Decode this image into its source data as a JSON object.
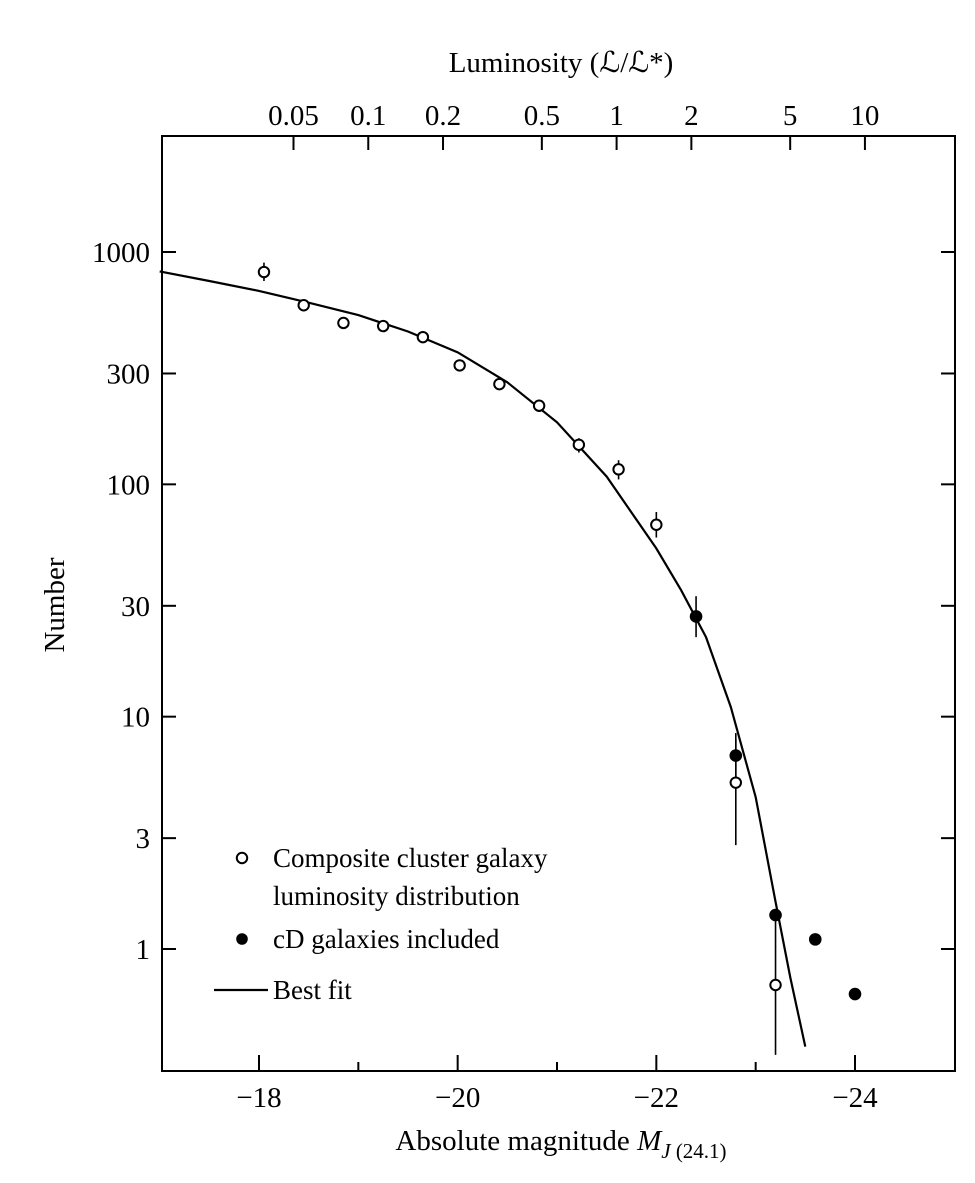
{
  "chart_data": {
    "type": "scatter",
    "top_axis": {
      "title": "Luminosity (ℒ/ℒ*)",
      "ticks": [
        {
          "value": 0.05,
          "label": "0.05"
        },
        {
          "value": 0.1,
          "label": "0.1"
        },
        {
          "value": 0.2,
          "label": "0.2"
        },
        {
          "value": 0.5,
          "label": "0.5"
        },
        {
          "value": 1,
          "label": "1"
        },
        {
          "value": 2,
          "label": "2"
        },
        {
          "value": 5,
          "label": "5"
        },
        {
          "value": 10,
          "label": "10"
        }
      ]
    },
    "x_axis": {
      "title_main": "Absolute magnitude ",
      "title_symbol": "M",
      "title_sub_italic": "J",
      "title_sub": " (24.1)",
      "range": [
        -17,
        -25
      ],
      "ticks": [
        {
          "value": -18,
          "label": "−18"
        },
        {
          "value": -20,
          "label": "−20"
        },
        {
          "value": -22,
          "label": "−22"
        },
        {
          "value": -24,
          "label": "−24"
        }
      ]
    },
    "y_axis": {
      "title": "Number",
      "scale": "log",
      "range": [
        0.35,
        4000
      ],
      "ticks": [
        {
          "value": 1000,
          "label": "1000"
        },
        {
          "value": 300,
          "label": "300"
        },
        {
          "value": 100,
          "label": "100"
        },
        {
          "value": 30,
          "label": "30"
        },
        {
          "value": 10,
          "label": "10"
        },
        {
          "value": 3,
          "label": "3"
        },
        {
          "value": 1,
          "label": "1"
        }
      ]
    },
    "series": [
      {
        "name": "Composite cluster galaxy luminosity distribution",
        "marker": "open-circle",
        "points": [
          {
            "x": -18.05,
            "y": 820,
            "err": [
              750,
              900
            ]
          },
          {
            "x": -18.45,
            "y": 590,
            "err": [
              560,
              620
            ]
          },
          {
            "x": -18.85,
            "y": 495,
            "err": [
              470,
              520
            ]
          },
          {
            "x": -19.25,
            "y": 480,
            "err": [
              460,
              500
            ]
          },
          {
            "x": -19.65,
            "y": 430,
            "err": [
              410,
              450
            ]
          },
          {
            "x": -20.02,
            "y": 325,
            "err": [
              310,
              340
            ]
          },
          {
            "x": -20.42,
            "y": 270,
            "err": [
              258,
              282
            ]
          },
          {
            "x": -20.82,
            "y": 218,
            "err": [
              205,
              230
            ]
          },
          {
            "x": -21.22,
            "y": 148,
            "err": [
              137,
              158
            ]
          },
          {
            "x": -21.62,
            "y": 116,
            "err": [
              105,
              127
            ]
          },
          {
            "x": -22.0,
            "y": 67,
            "err": [
              59,
              76
            ]
          },
          {
            "x": -22.8,
            "y": 5.2,
            "err": [
              2.8,
              8.5
            ]
          },
          {
            "x": -23.2,
            "y": 0.7,
            "err": [
              0.35,
              1.4
            ]
          }
        ]
      },
      {
        "name": "cD galaxies included",
        "marker": "filled-circle",
        "points": [
          {
            "x": -22.4,
            "y": 27,
            "err": [
              22,
              33
            ]
          },
          {
            "x": -22.8,
            "y": 6.8,
            "err": [
              5.5,
              8.0
            ]
          },
          {
            "x": -23.2,
            "y": 1.4,
            "err": null
          },
          {
            "x": -23.6,
            "y": 1.1,
            "err": null
          },
          {
            "x": -24.0,
            "y": 0.64,
            "err": null
          }
        ]
      },
      {
        "name": "Best fit",
        "marker": "line",
        "points": [
          {
            "x": -17.0,
            "y": 825
          },
          {
            "x": -17.5,
            "y": 750
          },
          {
            "x": -18.0,
            "y": 680
          },
          {
            "x": -18.5,
            "y": 605
          },
          {
            "x": -19.0,
            "y": 535
          },
          {
            "x": -19.5,
            "y": 455
          },
          {
            "x": -20.0,
            "y": 370
          },
          {
            "x": -20.5,
            "y": 275
          },
          {
            "x": -21.0,
            "y": 185
          },
          {
            "x": -21.5,
            "y": 108
          },
          {
            "x": -22.0,
            "y": 53
          },
          {
            "x": -22.25,
            "y": 35
          },
          {
            "x": -22.5,
            "y": 22
          },
          {
            "x": -22.75,
            "y": 11
          },
          {
            "x": -23.0,
            "y": 4.5
          },
          {
            "x": -23.2,
            "y": 1.6
          },
          {
            "x": -23.35,
            "y": 0.75
          },
          {
            "x": -23.5,
            "y": 0.38
          }
        ]
      }
    ],
    "legend": {
      "position": "bottom-left",
      "items": [
        {
          "marker": "open-circle",
          "lines": [
            "Composite cluster galaxy",
            "luminosity distribution"
          ]
        },
        {
          "marker": "filled-circle",
          "lines": [
            "cD galaxies included"
          ]
        },
        {
          "marker": "line",
          "lines": [
            "Best fit"
          ]
        }
      ]
    },
    "grid": false
  }
}
